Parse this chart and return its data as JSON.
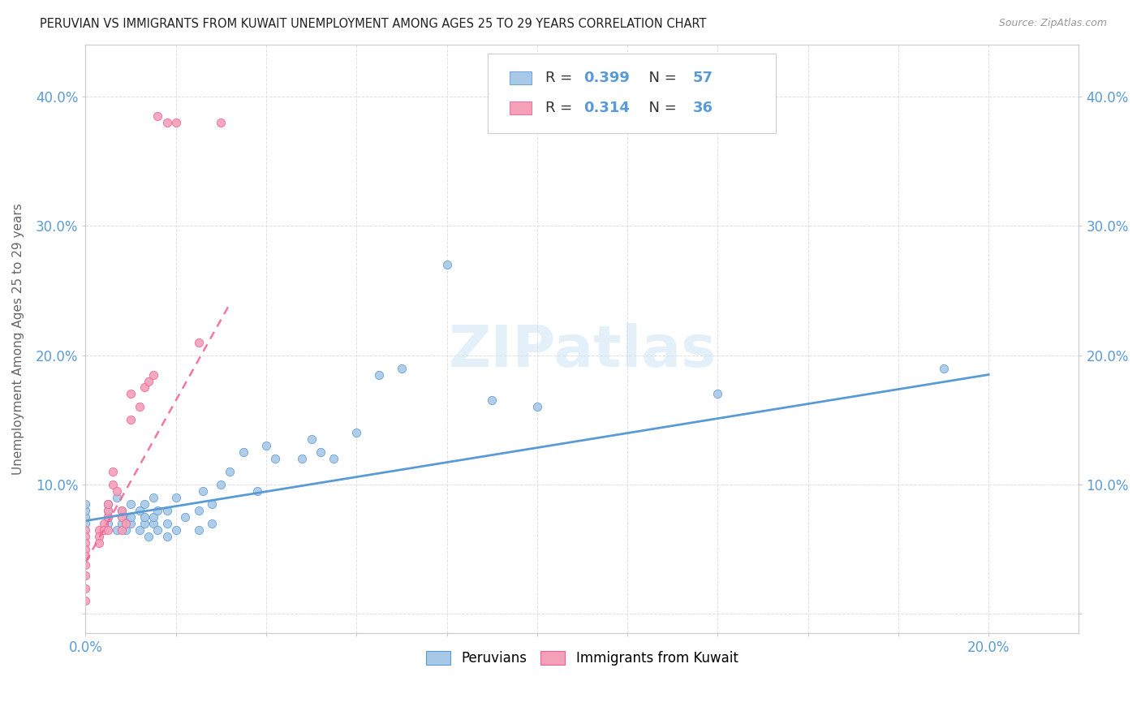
{
  "title": "PERUVIAN VS IMMIGRANTS FROM KUWAIT UNEMPLOYMENT AMONG AGES 25 TO 29 YEARS CORRELATION CHART",
  "source": "Source: ZipAtlas.com",
  "ylabel": "Unemployment Among Ages 25 to 29 years",
  "xlim": [
    0.0,
    0.22
  ],
  "ylim": [
    -0.015,
    0.44
  ],
  "xticks": [
    0.0,
    0.02,
    0.04,
    0.06,
    0.08,
    0.1,
    0.12,
    0.14,
    0.16,
    0.18,
    0.2
  ],
  "yticks": [
    0.0,
    0.1,
    0.2,
    0.3,
    0.4
  ],
  "ytick_labels_left": [
    "",
    "10.0%",
    "20.0%",
    "30.0%",
    "40.0%"
  ],
  "ytick_labels_right": [
    "",
    "10.0%",
    "20.0%",
    "30.0%",
    "40.0%"
  ],
  "legend_label1": "Peruvians",
  "legend_label2": "Immigrants from Kuwait",
  "R1": 0.399,
  "N1": 57,
  "R2": 0.314,
  "N2": 36,
  "color1": "#a8c8e8",
  "color2": "#f4a0b8",
  "edge1": "#5b9bd5",
  "edge2": "#f06090",
  "trendline1_color": "#5b9bd5",
  "trendline2_color": "#f06090",
  "watermark": "ZIPatlas",
  "scatter1_x": [
    0.0,
    0.0,
    0.0,
    0.0,
    0.005,
    0.005,
    0.005,
    0.005,
    0.007,
    0.007,
    0.008,
    0.008,
    0.009,
    0.009,
    0.01,
    0.01,
    0.01,
    0.012,
    0.012,
    0.013,
    0.013,
    0.013,
    0.014,
    0.015,
    0.015,
    0.015,
    0.016,
    0.016,
    0.018,
    0.018,
    0.018,
    0.02,
    0.02,
    0.022,
    0.025,
    0.025,
    0.026,
    0.028,
    0.028,
    0.03,
    0.032,
    0.035,
    0.038,
    0.04,
    0.042,
    0.048,
    0.05,
    0.052,
    0.055,
    0.06,
    0.065,
    0.07,
    0.08,
    0.09,
    0.1,
    0.14,
    0.19
  ],
  "scatter1_y": [
    0.07,
    0.075,
    0.08,
    0.085,
    0.07,
    0.075,
    0.08,
    0.085,
    0.065,
    0.09,
    0.07,
    0.08,
    0.065,
    0.075,
    0.07,
    0.075,
    0.085,
    0.065,
    0.08,
    0.07,
    0.075,
    0.085,
    0.06,
    0.07,
    0.075,
    0.09,
    0.065,
    0.08,
    0.06,
    0.07,
    0.08,
    0.065,
    0.09,
    0.075,
    0.065,
    0.08,
    0.095,
    0.07,
    0.085,
    0.1,
    0.11,
    0.125,
    0.095,
    0.13,
    0.12,
    0.12,
    0.135,
    0.125,
    0.12,
    0.14,
    0.185,
    0.19,
    0.27,
    0.165,
    0.16,
    0.17,
    0.19
  ],
  "scatter2_x": [
    0.0,
    0.0,
    0.0,
    0.0,
    0.0,
    0.0,
    0.0,
    0.0,
    0.0,
    0.003,
    0.003,
    0.003,
    0.004,
    0.004,
    0.005,
    0.005,
    0.005,
    0.005,
    0.006,
    0.006,
    0.007,
    0.008,
    0.008,
    0.008,
    0.009,
    0.01,
    0.01,
    0.012,
    0.013,
    0.014,
    0.015,
    0.016,
    0.018,
    0.02,
    0.025,
    0.03
  ],
  "scatter2_y": [
    0.065,
    0.06,
    0.055,
    0.05,
    0.045,
    0.038,
    0.03,
    0.02,
    0.01,
    0.065,
    0.06,
    0.055,
    0.07,
    0.065,
    0.065,
    0.075,
    0.08,
    0.085,
    0.1,
    0.11,
    0.095,
    0.08,
    0.075,
    0.065,
    0.07,
    0.15,
    0.17,
    0.16,
    0.175,
    0.18,
    0.185,
    0.385,
    0.38,
    0.38,
    0.21,
    0.38
  ],
  "trendline1_x": [
    0.0,
    0.2
  ],
  "trendline1_y": [
    0.072,
    0.185
  ],
  "trendline2_x": [
    0.0,
    0.032
  ],
  "trendline2_y": [
    0.04,
    0.24
  ]
}
